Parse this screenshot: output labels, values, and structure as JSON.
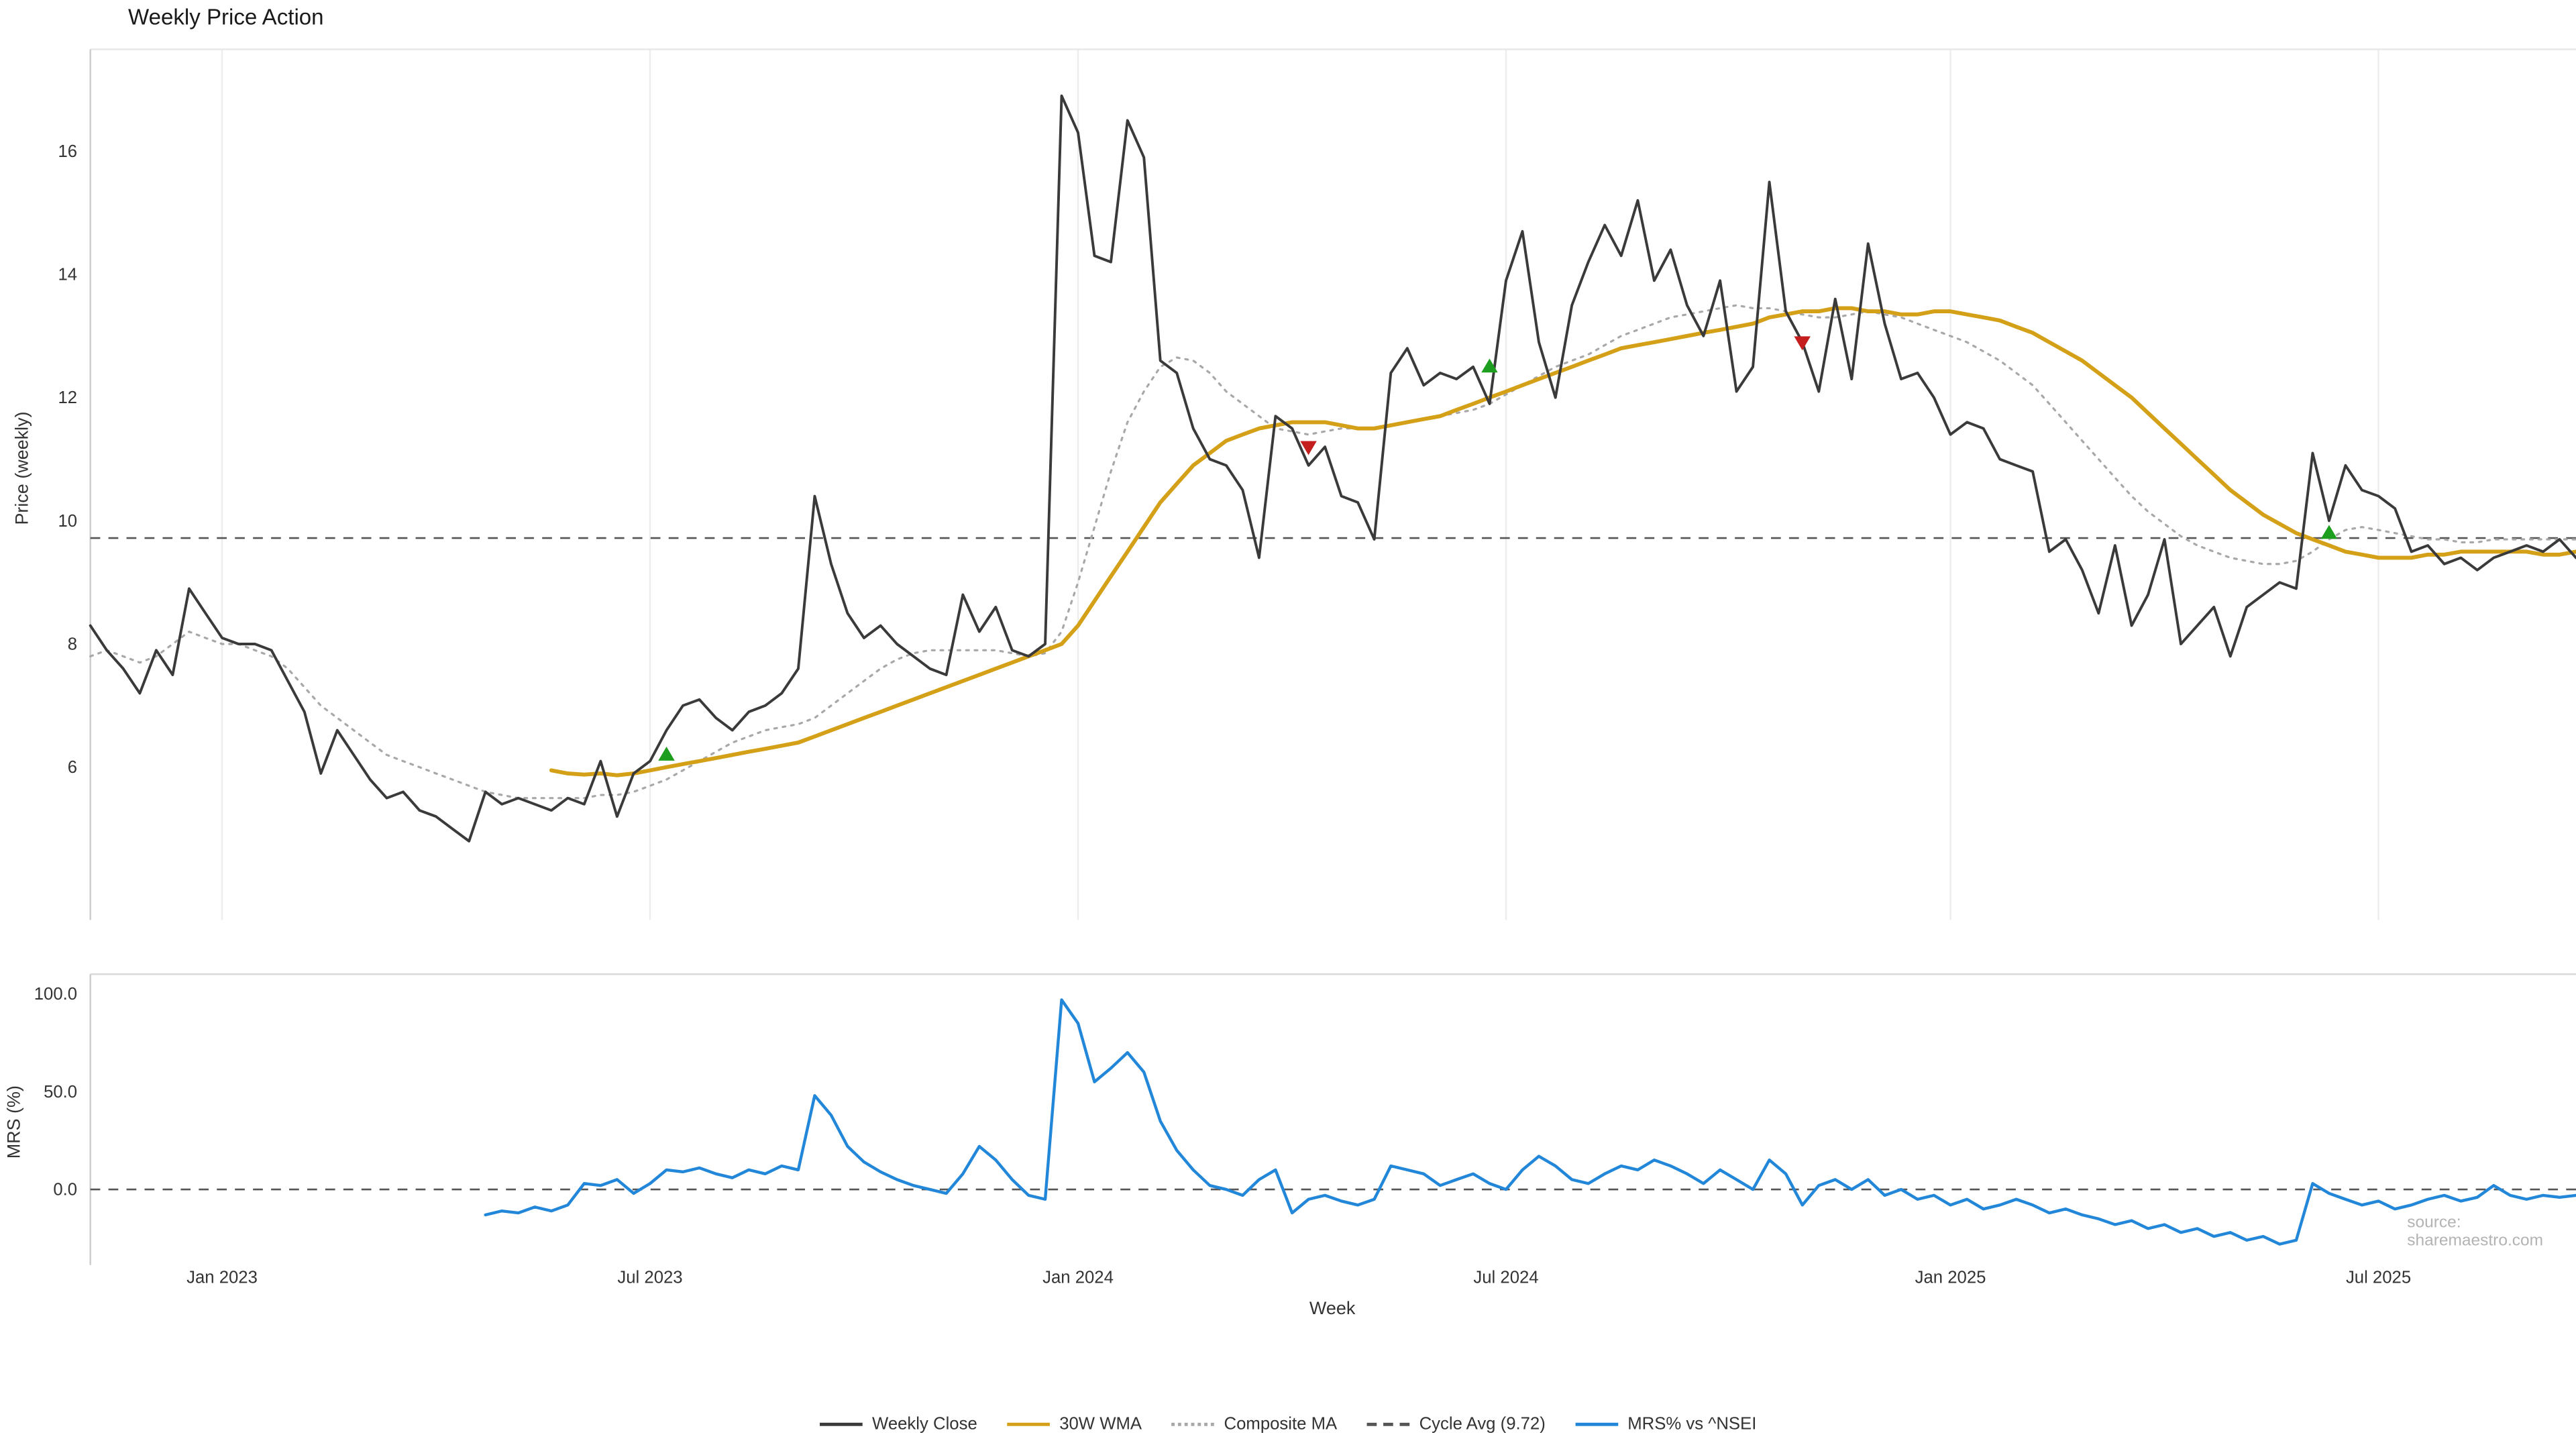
{
  "source": "source: sharemaestro.com",
  "legend": [
    {
      "label": "Weekly Close",
      "color": "#3a3a3a",
      "style": "solid"
    },
    {
      "label": "30W WMA",
      "color": "#d4a017",
      "style": "solid"
    },
    {
      "label": "Composite MA",
      "color": "#a8a8a8",
      "style": "dotted"
    },
    {
      "label": "Cycle Avg (9.72)",
      "color": "#555555",
      "style": "dashed"
    },
    {
      "label": "MRS% vs ^NSEI",
      "color": "#2287d8",
      "style": "solid"
    }
  ],
  "colors": {
    "weekly_close": "#3a3a3a",
    "wma_30w": "#d4a017",
    "composite_ma": "#a8a8a8",
    "cycle_avg": "#555555",
    "mrs": "#2287d8",
    "buy_marker": "#1e9e1e",
    "sell_marker": "#c41e1e",
    "gridline": "#ededed",
    "background": "#ffffff"
  },
  "chart_data": {
    "type": "line",
    "title": "Weekly Price Action",
    "xlabel": "Week",
    "weeks": 152,
    "x_ticks": [
      {
        "week": 8,
        "label": "Jan 2023"
      },
      {
        "week": 34,
        "label": "Jul 2023"
      },
      {
        "week": 60,
        "label": "Jan 2024"
      },
      {
        "week": 86,
        "label": "Jul 2024"
      },
      {
        "week": 113,
        "label": "Jan 2025"
      },
      {
        "week": 139,
        "label": "Jul 2025"
      }
    ],
    "panels": [
      {
        "name": "price",
        "ylabel": "Price (weekly)",
        "ylim": [
          3.5,
          17.6
        ],
        "y_ticks": [
          {
            "value": 16,
            "label": "16"
          },
          {
            "value": 14,
            "label": "14"
          },
          {
            "value": 12,
            "label": "12"
          },
          {
            "value": 10,
            "label": "10"
          },
          {
            "value": 8,
            "label": "8"
          },
          {
            "value": 6,
            "label": "6"
          }
        ],
        "ref_line": {
          "label": "Cycle Avg (9.72)",
          "value": 9.72,
          "style": "dashed"
        },
        "series": [
          {
            "name": "Weekly Close",
            "color": "#3a3a3a",
            "style": "solid",
            "values": [
              8.3,
              7.9,
              7.6,
              7.2,
              7.9,
              7.5,
              8.9,
              8.5,
              8.1,
              8.0,
              8.0,
              7.9,
              7.4,
              6.9,
              5.9,
              6.6,
              6.2,
              5.8,
              5.5,
              5.6,
              5.3,
              5.2,
              5.0,
              4.8,
              5.6,
              5.4,
              5.5,
              5.4,
              5.3,
              5.5,
              5.4,
              6.1,
              5.2,
              5.9,
              6.1,
              6.6,
              7.0,
              7.1,
              6.8,
              6.6,
              6.9,
              7.0,
              7.2,
              7.6,
              10.4,
              9.3,
              8.5,
              8.1,
              8.3,
              8.0,
              7.8,
              7.6,
              7.5,
              8.8,
              8.2,
              8.6,
              7.9,
              7.8,
              8.0,
              16.9,
              16.3,
              14.3,
              14.2,
              16.5,
              15.9,
              12.6,
              12.4,
              11.5,
              11.0,
              10.9,
              10.5,
              9.4,
              11.7,
              11.5,
              10.9,
              11.2,
              10.4,
              10.3,
              9.7,
              12.4,
              12.8,
              12.2,
              12.4,
              12.3,
              12.5,
              11.9,
              13.9,
              14.7,
              12.9,
              12.0,
              13.5,
              14.2,
              14.8,
              14.3,
              15.2,
              13.9,
              14.4,
              13.5,
              13.0,
              13.9,
              12.1,
              12.5,
              15.5,
              13.4,
              12.9,
              12.1,
              13.6,
              12.3,
              14.5,
              13.2,
              12.3,
              12.4,
              12.0,
              11.4,
              11.6,
              11.5,
              11.0,
              10.9,
              10.8,
              9.5,
              9.7,
              9.2,
              8.5,
              9.6,
              8.3,
              8.8,
              9.7,
              8.0,
              8.3,
              8.6,
              7.8,
              8.6,
              8.8,
              9.0,
              8.9,
              11.1,
              10.0,
              10.9,
              10.5,
              10.4,
              10.2,
              9.5,
              9.6,
              9.3,
              9.4,
              9.2,
              9.4,
              9.5,
              9.6,
              9.5,
              9.7,
              9.4
            ]
          },
          {
            "name": "30W WMA",
            "color": "#d4a017",
            "style": "solid",
            "values": [
              null,
              null,
              null,
              null,
              null,
              null,
              null,
              null,
              null,
              null,
              null,
              null,
              null,
              null,
              null,
              null,
              null,
              null,
              null,
              null,
              null,
              null,
              null,
              null,
              null,
              null,
              null,
              null,
              5.95,
              5.9,
              5.88,
              5.9,
              5.87,
              5.9,
              5.95,
              6.0,
              6.05,
              6.1,
              6.15,
              6.2,
              6.25,
              6.3,
              6.35,
              6.4,
              6.5,
              6.6,
              6.7,
              6.8,
              6.9,
              7.0,
              7.1,
              7.2,
              7.3,
              7.4,
              7.5,
              7.6,
              7.7,
              7.8,
              7.9,
              8.0,
              8.3,
              8.7,
              9.1,
              9.5,
              9.9,
              10.3,
              10.6,
              10.9,
              11.1,
              11.3,
              11.4,
              11.5,
              11.55,
              11.6,
              11.6,
              11.6,
              11.55,
              11.5,
              11.5,
              11.55,
              11.6,
              11.65,
              11.7,
              11.8,
              11.9,
              12.0,
              12.1,
              12.2,
              12.3,
              12.4,
              12.5,
              12.6,
              12.7,
              12.8,
              12.85,
              12.9,
              12.95,
              13.0,
              13.05,
              13.1,
              13.15,
              13.2,
              13.3,
              13.35,
              13.4,
              13.4,
              13.45,
              13.45,
              13.4,
              13.4,
              13.35,
              13.35,
              13.4,
              13.4,
              13.35,
              13.3,
              13.25,
              13.15,
              13.05,
              12.9,
              12.75,
              12.6,
              12.4,
              12.2,
              12.0,
              11.75,
              11.5,
              11.25,
              11.0,
              10.75,
              10.5,
              10.3,
              10.1,
              9.95,
              9.8,
              9.7,
              9.6,
              9.5,
              9.45,
              9.4,
              9.4,
              9.4,
              9.45,
              9.45,
              9.5,
              9.5,
              9.5,
              9.5,
              9.5,
              9.45,
              9.45,
              9.5
            ]
          },
          {
            "name": "Composite MA",
            "color": "#a8a8a8",
            "style": "dotted",
            "values": [
              7.8,
              7.9,
              7.8,
              7.7,
              7.8,
              8.0,
              8.2,
              8.1,
              8.0,
              8.0,
              7.9,
              7.8,
              7.6,
              7.3,
              7.0,
              6.8,
              6.6,
              6.4,
              6.2,
              6.1,
              6.0,
              5.9,
              5.8,
              5.7,
              5.6,
              5.55,
              5.5,
              5.5,
              5.5,
              5.5,
              5.5,
              5.55,
              5.55,
              5.6,
              5.7,
              5.8,
              5.95,
              6.1,
              6.25,
              6.4,
              6.5,
              6.6,
              6.65,
              6.7,
              6.8,
              7.0,
              7.2,
              7.4,
              7.6,
              7.75,
              7.85,
              7.9,
              7.9,
              7.9,
              7.9,
              7.9,
              7.85,
              7.8,
              7.85,
              8.2,
              9.0,
              9.9,
              10.8,
              11.6,
              12.1,
              12.5,
              12.65,
              12.6,
              12.4,
              12.1,
              11.9,
              11.7,
              11.5,
              11.45,
              11.4,
              11.45,
              11.5,
              11.5,
              11.5,
              11.55,
              11.6,
              11.65,
              11.7,
              11.75,
              11.8,
              11.9,
              12.05,
              12.2,
              12.35,
              12.5,
              12.6,
              12.7,
              12.85,
              13.0,
              13.1,
              13.2,
              13.3,
              13.35,
              13.4,
              13.45,
              13.5,
              13.45,
              13.45,
              13.4,
              13.35,
              13.3,
              13.3,
              13.35,
              13.4,
              13.35,
              13.3,
              13.2,
              13.1,
              13.0,
              12.9,
              12.75,
              12.6,
              12.4,
              12.2,
              11.9,
              11.6,
              11.3,
              11.0,
              10.7,
              10.4,
              10.15,
              9.95,
              9.75,
              9.6,
              9.5,
              9.4,
              9.35,
              9.3,
              9.3,
              9.35,
              9.5,
              9.7,
              9.85,
              9.9,
              9.85,
              9.8,
              9.75,
              9.7,
              9.7,
              9.65,
              9.65,
              9.7,
              9.7,
              9.7,
              9.7,
              9.7,
              9.7
            ]
          }
        ],
        "markers": [
          {
            "type": "buy",
            "week": 35,
            "value": 6.2,
            "color": "#1e9e1e"
          },
          {
            "type": "sell",
            "week": 74,
            "value": 11.2,
            "color": "#c41e1e"
          },
          {
            "type": "buy",
            "week": 85,
            "value": 12.5,
            "color": "#1e9e1e"
          },
          {
            "type": "sell",
            "week": 104,
            "value": 12.9,
            "color": "#c41e1e"
          },
          {
            "type": "buy",
            "week": 136,
            "value": 9.8,
            "color": "#1e9e1e"
          }
        ]
      },
      {
        "name": "mrs",
        "ylabel": "MRS (%)",
        "ylim": [
          -38,
          110
        ],
        "y_ticks": [
          {
            "value": 100,
            "label": "100.0"
          },
          {
            "value": 50,
            "label": "50.0"
          },
          {
            "value": 0,
            "label": "0.0"
          }
        ],
        "ref_line": {
          "label": "Zero",
          "value": 0,
          "style": "dashed"
        },
        "series": [
          {
            "name": "MRS% vs ^NSEI",
            "color": "#2287d8",
            "style": "solid",
            "values": [
              null,
              null,
              null,
              null,
              null,
              null,
              null,
              null,
              null,
              null,
              null,
              null,
              null,
              null,
              null,
              null,
              null,
              null,
              null,
              null,
              null,
              null,
              null,
              null,
              -13,
              -11,
              -12,
              -9,
              -11,
              -8,
              3,
              2,
              5,
              -2,
              3,
              10,
              9,
              11,
              8,
              6,
              10,
              8,
              12,
              10,
              48,
              38,
              22,
              14,
              9,
              5,
              2,
              0,
              -2,
              8,
              22,
              15,
              5,
              -3,
              -5,
              97,
              85,
              55,
              62,
              70,
              60,
              35,
              20,
              10,
              2,
              0,
              -3,
              5,
              10,
              -12,
              -5,
              -3,
              -6,
              -8,
              -5,
              12,
              10,
              8,
              2,
              5,
              8,
              3,
              0,
              10,
              17,
              12,
              5,
              3,
              8,
              12,
              10,
              15,
              12,
              8,
              3,
              10,
              5,
              0,
              15,
              8,
              -8,
              2,
              5,
              0,
              5,
              -3,
              0,
              -5,
              -3,
              -8,
              -5,
              -10,
              -8,
              -5,
              -8,
              -12,
              -10,
              -13,
              -15,
              -18,
              -16,
              -20,
              -18,
              -22,
              -20,
              -24,
              -22,
              -26,
              -24,
              -28,
              -26,
              3,
              -2,
              -5,
              -8,
              -6,
              -10,
              -8,
              -5,
              -3,
              -6,
              -4,
              2,
              -3,
              -5,
              -3,
              -4,
              -3
            ]
          }
        ]
      }
    ]
  }
}
